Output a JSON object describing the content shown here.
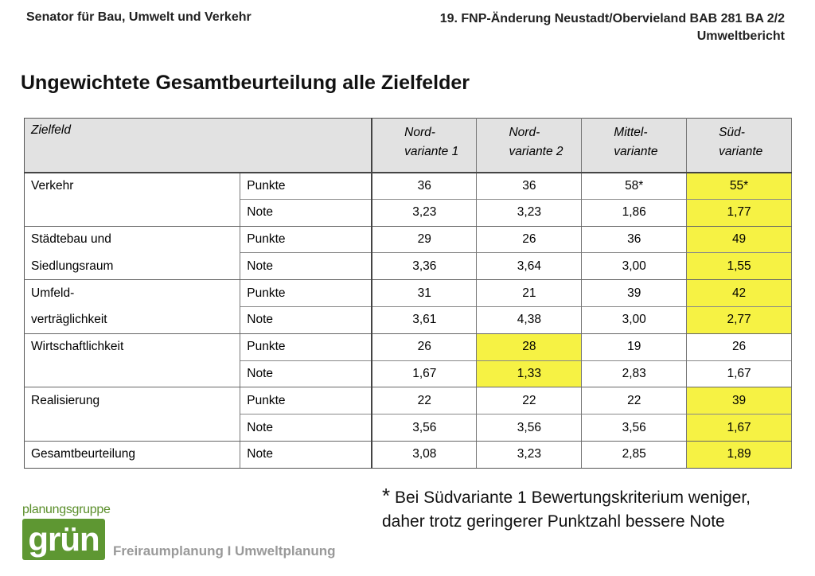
{
  "header": {
    "left": "Senator für Bau, Umwelt und Verkehr",
    "right_line1": "19. FNP-Änderung Neustadt/Obervieland BAB 281 BA 2/2",
    "right_line2": "Umweltbericht"
  },
  "title": "Ungewichtete Gesamtbeurteilung alle Zielfelder",
  "table": {
    "col_zielfeld": "Zielfeld",
    "variants": [
      {
        "l1": "Nord-",
        "l2": "variante 1"
      },
      {
        "l1": "Nord-",
        "l2": "variante 2"
      },
      {
        "l1": "Mittel-",
        "l2": "variante"
      },
      {
        "l1": "Süd-",
        "l2": "variante"
      }
    ],
    "rows": [
      {
        "field": "Verkehr",
        "metric": "Punkte",
        "values": [
          "36",
          "36",
          "58*",
          "55*"
        ],
        "highlight": [
          false,
          false,
          false,
          true
        ]
      },
      {
        "field": "",
        "metric": "Note",
        "values": [
          "3,23",
          "3,23",
          "1,86",
          "1,77"
        ],
        "highlight": [
          false,
          false,
          false,
          true
        ]
      },
      {
        "field": "Städtebau und",
        "metric": "Punkte",
        "values": [
          "29",
          "26",
          "36",
          "49"
        ],
        "highlight": [
          false,
          false,
          false,
          true
        ]
      },
      {
        "field": "Siedlungsraum",
        "metric": "Note",
        "values": [
          "3,36",
          "3,64",
          "3,00",
          "1,55"
        ],
        "highlight": [
          false,
          false,
          false,
          true
        ]
      },
      {
        "field": "Umfeld-",
        "metric": "Punkte",
        "values": [
          "31",
          "21",
          "39",
          "42"
        ],
        "highlight": [
          false,
          false,
          false,
          true
        ]
      },
      {
        "field": "verträglichkeit",
        "metric": "Note",
        "values": [
          "3,61",
          "4,38",
          "3,00",
          "2,77"
        ],
        "highlight": [
          false,
          false,
          false,
          true
        ]
      },
      {
        "field": "Wirtschaftlichkeit",
        "metric": "Punkte",
        "values": [
          "26",
          "28",
          "19",
          "26"
        ],
        "highlight": [
          false,
          true,
          false,
          false
        ]
      },
      {
        "field": "",
        "metric": "Note",
        "values": [
          "1,67",
          "1,33",
          "2,83",
          "1,67"
        ],
        "highlight": [
          false,
          true,
          false,
          false
        ]
      },
      {
        "field": "Realisierung",
        "metric": "Punkte",
        "values": [
          "22",
          "22",
          "22",
          "39"
        ],
        "highlight": [
          false,
          false,
          false,
          true
        ]
      },
      {
        "field": "",
        "metric": "Note",
        "values": [
          "3,56",
          "3,56",
          "3,56",
          "1,67"
        ],
        "highlight": [
          false,
          false,
          false,
          true
        ]
      },
      {
        "field": "Gesamtbeurteilung",
        "metric": "Note",
        "values": [
          "3,08",
          "3,23",
          "2,85",
          "1,89"
        ],
        "highlight": [
          false,
          false,
          false,
          true
        ]
      }
    ]
  },
  "footnote": {
    "star": "*",
    "text": " Bei Südvariante 1 Bewertungskriterium weniger, daher trotz geringerer Punktzahl bessere Note"
  },
  "logo": {
    "top": "planungsgruppe",
    "word": "grün"
  },
  "tagline": "Freiraumplanung I Umweltplanung",
  "colors": {
    "highlight": "#f6f244",
    "header_bg": "#e2e2e2",
    "logo_green": "#5e9732"
  }
}
